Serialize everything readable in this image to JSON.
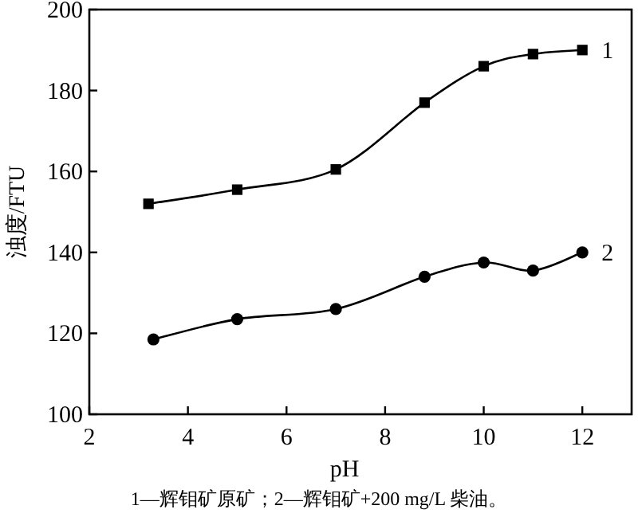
{
  "chart_data": {
    "type": "line",
    "xlabel": "pH",
    "ylabel": "浊度/FTU",
    "xlim": [
      2,
      13
    ],
    "ylim": [
      100,
      200
    ],
    "xticks": [
      2,
      4,
      6,
      8,
      10,
      12
    ],
    "yticks": [
      100,
      120,
      140,
      160,
      180,
      200
    ],
    "grid": false,
    "legend": false,
    "series": [
      {
        "name": "1",
        "color": "#000000",
        "marker": "square",
        "x": [
          3.2,
          5,
          7,
          8.8,
          10,
          11,
          12
        ],
        "values": [
          152,
          155.5,
          160.5,
          177,
          186,
          189,
          190
        ]
      },
      {
        "name": "2",
        "color": "#000000",
        "marker": "circle",
        "x": [
          3.3,
          5,
          7,
          8.8,
          10,
          11,
          12
        ],
        "values": [
          118.5,
          123.5,
          126,
          134,
          137.5,
          135.5,
          140
        ]
      }
    ],
    "annotations": [
      "1—辉钼矿原矿；2—辉钼矿+200 mg/L 柴油。"
    ]
  }
}
